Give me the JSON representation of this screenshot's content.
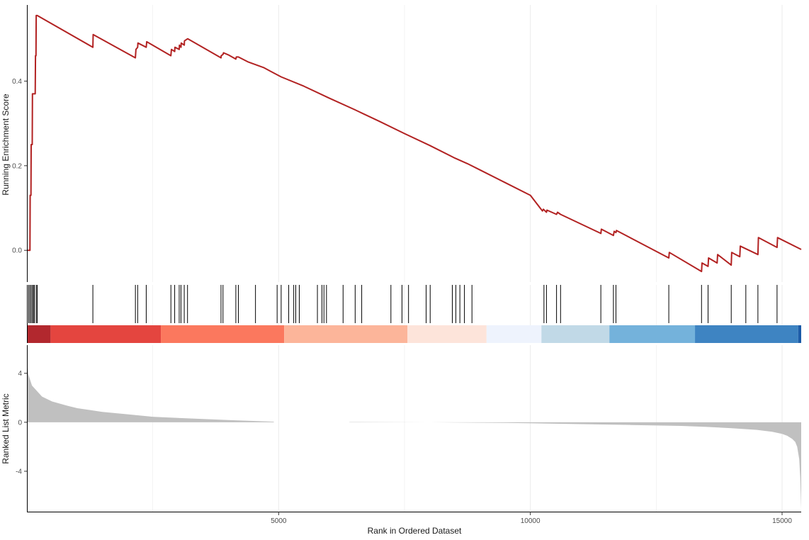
{
  "chart_data": {
    "type": "gsea_enrichment_plot",
    "x_range": [
      0,
      15380
    ],
    "xlabel": "Rank in Ordered Dataset",
    "x_ticks": [
      5000,
      10000,
      15000
    ],
    "grid": "vertical only",
    "panels": {
      "running_score": {
        "type": "line",
        "ylabel": "Running Enrichment Score",
        "y_ticks": [
          0.0,
          0.2,
          0.4
        ],
        "y_tick_labels": [
          "0.0",
          "0.2",
          "0.4"
        ],
        "ylim": [
          -0.075,
          0.58
        ],
        "color": "#B22222",
        "series": [
          {
            "x": [
              0,
              60,
              65,
              80,
              85,
              105,
              110,
              120,
              165,
              170,
              180,
              185,
              205,
              1310,
              1315,
              2155,
              2165,
              2200,
              2205,
              2370,
              2380,
              2860,
              2870,
              2935,
              2940,
              3025,
              3030,
              3060,
              3065,
              3125,
              3130,
              3190,
              3195,
              3855,
              3860,
              3895,
              3905,
              4000,
              4150,
              4160,
              4200,
              4400,
              4700,
              5050,
              5500,
              6000,
              6500,
              7000,
              7500,
              8000,
              8500,
              8750,
              9000,
              9500,
              10000,
              10240,
              10260,
              10320,
              10330,
              10520,
              10540,
              10600,
              11400,
              11410,
              11650,
              11665,
              11700,
              11710,
              12750,
              12760,
              13400,
              13410,
              13530,
              13540,
              13710,
              13720,
              13990,
              14000,
              14160,
              14170,
              14520,
              14530,
              14900,
              14910,
              15380
            ],
            "y": [
              0.0,
              0.0,
              0.13,
              0.13,
              0.25,
              0.25,
              0.37,
              0.37,
              0.37,
              0.46,
              0.46,
              0.555,
              0.555,
              0.48,
              0.51,
              0.455,
              0.475,
              0.48,
              0.49,
              0.48,
              0.493,
              0.46,
              0.475,
              0.47,
              0.48,
              0.475,
              0.485,
              0.48,
              0.49,
              0.485,
              0.495,
              0.5,
              0.5,
              0.455,
              0.46,
              0.463,
              0.467,
              0.462,
              0.452,
              0.457,
              0.457,
              0.445,
              0.432,
              0.41,
              0.388,
              0.36,
              0.333,
              0.305,
              0.276,
              0.248,
              0.218,
              0.205,
              0.19,
              0.16,
              0.13,
              0.093,
              0.097,
              0.09,
              0.095,
              0.085,
              0.09,
              0.085,
              0.04,
              0.05,
              0.035,
              0.045,
              0.042,
              0.047,
              -0.018,
              -0.005,
              -0.05,
              -0.03,
              -0.038,
              -0.018,
              -0.03,
              -0.01,
              -0.035,
              -0.005,
              -0.015,
              0.01,
              -0.01,
              0.03,
              0.007,
              0.03,
              0.002
            ]
          }
        ]
      },
      "gene_hits": {
        "type": "rug",
        "positions": [
          35,
          60,
          85,
          110,
          130,
          150,
          185,
          205,
          1310,
          2155,
          2200,
          2370,
          2860,
          2935,
          3025,
          3060,
          3125,
          3190,
          3855,
          3895,
          4150,
          4200,
          4540,
          4970,
          5050,
          5200,
          5300,
          5340,
          5410,
          5770,
          5860,
          5900,
          5950,
          6280,
          6520,
          6650,
          7230,
          7450,
          7580,
          7930,
          8010,
          8450,
          8520,
          8600,
          8690,
          8840,
          10270,
          10320,
          10520,
          10600,
          11400,
          11650,
          11700,
          12750,
          13400,
          13530,
          13990,
          14280,
          14520,
          14900
        ]
      },
      "color_bar": {
        "type": "heatmap",
        "segments": [
          {
            "from": 0,
            "to": 470,
            "color": "#B2282E"
          },
          {
            "from": 470,
            "to": 2660,
            "color": "#E4453F"
          },
          {
            "from": 2660,
            "to": 5110,
            "color": "#FB785E"
          },
          {
            "from": 5110,
            "to": 7560,
            "color": "#FCB59A"
          },
          {
            "from": 7560,
            "to": 9130,
            "color": "#FDE4DA"
          },
          {
            "from": 9130,
            "to": 10220,
            "color": "#EEF3FD"
          },
          {
            "from": 10220,
            "to": 11570,
            "color": "#C1D9E7"
          },
          {
            "from": 11570,
            "to": 13270,
            "color": "#74B2DB"
          },
          {
            "from": 13270,
            "to": 15320,
            "color": "#3E84C2"
          },
          {
            "from": 15320,
            "to": 15380,
            "color": "#1B5BA8"
          }
        ]
      },
      "ranked_list": {
        "type": "area",
        "ylabel": "Ranked List Metric",
        "y_ticks": [
          4,
          0,
          -4
        ],
        "y_tick_labels": [
          "4",
          "0",
          "-4"
        ],
        "ylim": [
          -7.3,
          6.3
        ],
        "fill": "#C0C0C0",
        "series": [
          {
            "x": [
              0,
              5,
              30,
              100,
              300,
              500,
              800,
              1000,
              1500,
              2000,
              2500,
              3000,
              4000,
              4900,
              4910,
              6400,
              6410,
              8000,
              9500,
              10000,
              11000,
              12000,
              13000,
              13500,
              14000,
              14500,
              14800,
              15000,
              15100,
              15200,
              15260,
              15300,
              15340,
              15360,
              15380
            ],
            "y": [
              6.3,
              4.8,
              3.9,
              3.0,
              2.1,
              1.7,
              1.35,
              1.15,
              0.85,
              0.65,
              0.45,
              0.35,
              0.18,
              0.05,
              0.0,
              0.0,
              0.02,
              0.0,
              -0.05,
              -0.08,
              -0.15,
              -0.22,
              -0.3,
              -0.38,
              -0.48,
              -0.62,
              -0.78,
              -0.95,
              -1.1,
              -1.35,
              -1.6,
              -2.0,
              -3.0,
              -4.5,
              -7.1
            ]
          }
        ]
      }
    }
  }
}
